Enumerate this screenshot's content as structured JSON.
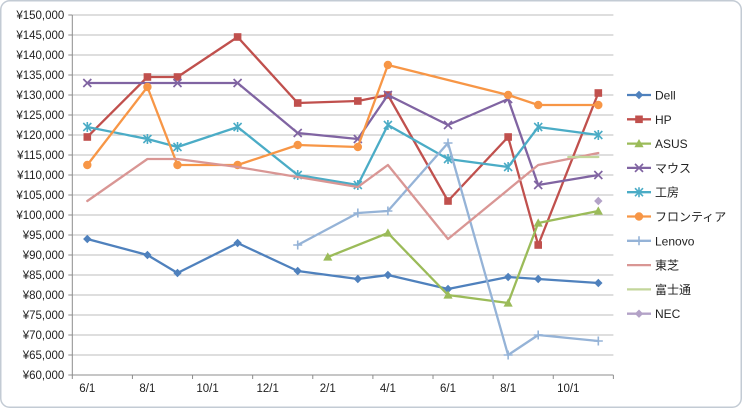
{
  "window": {
    "background": "#FFFFFF",
    "border_color": "#C3CBD4"
  },
  "chart_data": {
    "type": "line",
    "title": "",
    "currency_prefix": "¥",
    "grid": true,
    "legend_position": "right",
    "axis_color": "#8C8C8C",
    "grid_color": "#BEBEBE",
    "y_axis": {
      "min": 60000,
      "max": 150000,
      "step": 5000,
      "tick_labels": [
        "¥150,000",
        "¥145,000",
        "¥140,000",
        "¥135,000",
        "¥130,000",
        "¥125,000",
        "¥120,000",
        "¥115,000",
        "¥110,000",
        "¥105,000",
        "¥100,000",
        "¥95,000",
        "¥90,000",
        "¥85,000",
        "¥80,000",
        "¥75,000",
        "¥70,000",
        "¥65,000",
        "¥60,000"
      ]
    },
    "x_axis": {
      "categories": [
        "6/1",
        "7/1",
        "8/1",
        "9/1",
        "10/1",
        "11/1",
        "12/1",
        "1/1",
        "2/1",
        "3/1",
        "4/1",
        "5/1",
        "6/1",
        "7/1",
        "8/1",
        "9/1",
        "10/1",
        "11/1"
      ],
      "shown_label_indices": [
        0,
        2,
        4,
        6,
        8,
        10,
        12,
        14,
        16
      ],
      "shown_labels": [
        "6/1",
        "8/1",
        "10/1",
        "12/1",
        "2/1",
        "4/1",
        "6/1",
        "8/1",
        "10/1"
      ]
    },
    "series": [
      {
        "name": "Dell",
        "color": "#4F81BD",
        "marker": "diamond",
        "points": [
          [
            0,
            94000
          ],
          [
            2,
            90000
          ],
          [
            3,
            85500
          ],
          [
            5,
            93000
          ],
          [
            7,
            86000
          ],
          [
            9,
            84000
          ],
          [
            10,
            85000
          ],
          [
            12,
            81500
          ],
          [
            14,
            84500
          ],
          [
            15,
            84000
          ],
          [
            17,
            83000
          ]
        ]
      },
      {
        "name": "HP",
        "color": "#C0504D",
        "marker": "square",
        "points": [
          [
            0,
            119500
          ],
          [
            2,
            134500
          ],
          [
            3,
            134500
          ],
          [
            5,
            144500
          ],
          [
            7,
            128000
          ],
          [
            9,
            128500
          ],
          [
            10,
            130000
          ],
          [
            12,
            103500
          ],
          [
            14,
            119500
          ],
          [
            15,
            92500
          ],
          [
            17,
            130500
          ]
        ]
      },
      {
        "name": "ASUS",
        "color": "#9BBB59",
        "marker": "triangle",
        "points": [
          [
            8,
            89500
          ],
          [
            10,
            95500
          ],
          [
            12,
            80000
          ],
          [
            14,
            78000
          ],
          [
            15,
            98000
          ],
          [
            17,
            101000
          ]
        ]
      },
      {
        "name": "マウス",
        "color": "#8064A2",
        "marker": "x",
        "points": [
          [
            0,
            133000
          ],
          [
            3,
            133000
          ],
          [
            5,
            133000
          ],
          [
            7,
            120500
          ],
          [
            9,
            119000
          ],
          [
            10,
            130000
          ],
          [
            12,
            122500
          ],
          [
            14,
            129000
          ],
          [
            15,
            107500
          ],
          [
            17,
            110000
          ]
        ]
      },
      {
        "name": "工房",
        "color": "#4BACC6",
        "marker": "star",
        "points": [
          [
            0,
            122000
          ],
          [
            2,
            119000
          ],
          [
            3,
            117000
          ],
          [
            5,
            122000
          ],
          [
            7,
            110000
          ],
          [
            9,
            107500
          ],
          [
            10,
            122500
          ],
          [
            12,
            114000
          ],
          [
            14,
            112000
          ],
          [
            15,
            122000
          ],
          [
            17,
            120000
          ]
        ]
      },
      {
        "name": "フロンティア",
        "color": "#F79646",
        "marker": "circle",
        "points": [
          [
            0,
            112500
          ],
          [
            2,
            132000
          ],
          [
            3,
            112500
          ],
          [
            5,
            112500
          ],
          [
            7,
            117500
          ],
          [
            9,
            117000
          ],
          [
            10,
            137500
          ],
          [
            14,
            130000
          ],
          [
            15,
            127500
          ],
          [
            17,
            127500
          ]
        ]
      },
      {
        "name": "Lenovo",
        "color": "#95B3D7",
        "marker": "plus",
        "points": [
          [
            7,
            92500
          ],
          [
            9,
            100500
          ],
          [
            10,
            101000
          ],
          [
            12,
            118000
          ],
          [
            14,
            65000
          ],
          [
            15,
            70000
          ],
          [
            17,
            68500
          ]
        ]
      },
      {
        "name": "東芝",
        "color": "#D99694",
        "marker": "none",
        "points": [
          [
            0,
            103500
          ],
          [
            2,
            114000
          ],
          [
            3,
            114000
          ],
          [
            5,
            112000
          ],
          [
            7,
            109500
          ],
          [
            9,
            107000
          ],
          [
            10,
            112500
          ],
          [
            12,
            94000
          ],
          [
            15,
            112500
          ],
          [
            17,
            115500
          ]
        ]
      },
      {
        "name": "富士通",
        "color": "#C3D69B",
        "marker": "none",
        "points": [
          [
            16,
            114500
          ],
          [
            17,
            114500
          ]
        ]
      },
      {
        "name": "NEC",
        "color": "#B3A2C7",
        "marker": "diamond",
        "points": [
          [
            17,
            103500
          ]
        ]
      }
    ]
  }
}
